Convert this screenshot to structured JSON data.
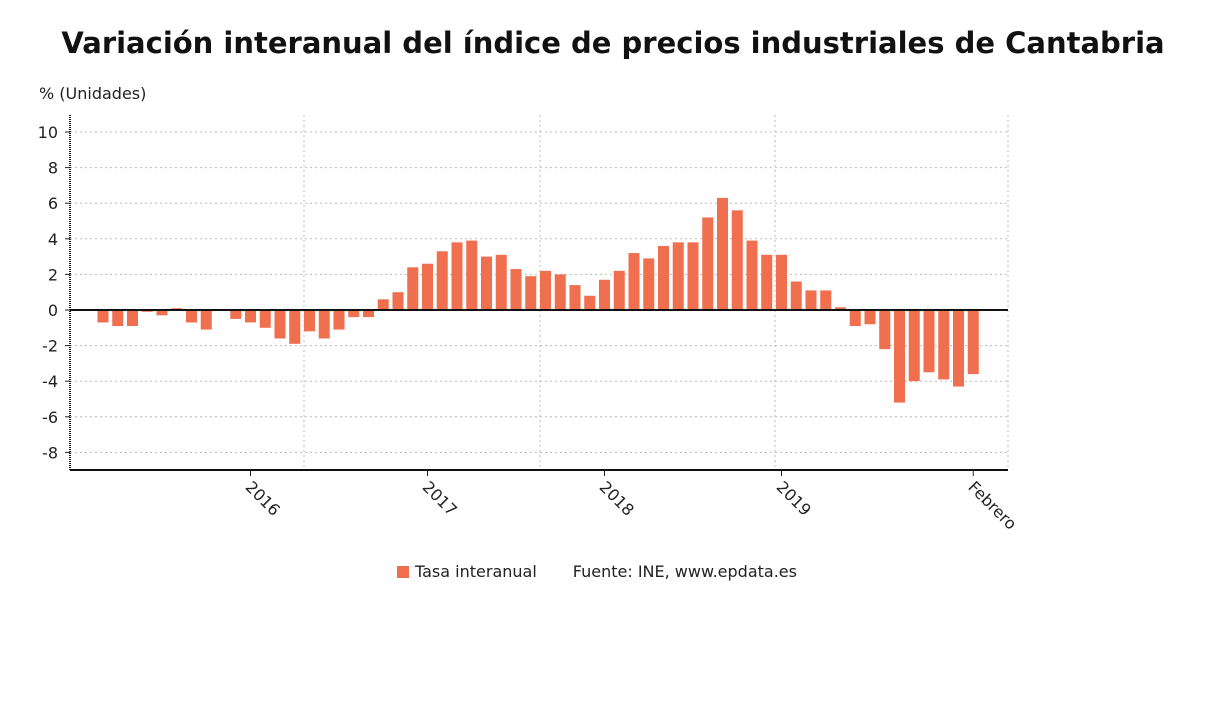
{
  "title": "Variación interanual del índice de precios industriales de Cantabria",
  "chart_data": {
    "type": "bar",
    "ylabel": "% (Unidades)",
    "ylim": [
      -9,
      11
    ],
    "yticks": [
      10,
      8,
      6,
      4,
      2,
      0,
      -2,
      -4,
      -6,
      -8
    ],
    "xtick_labels": [
      {
        "label": "2016",
        "index": 10
      },
      {
        "label": "2017",
        "index": 22
      },
      {
        "label": "2018",
        "index": 34
      },
      {
        "label": "2019",
        "index": 46
      },
      {
        "label": "Febrero",
        "index": 59
      }
    ],
    "grid": true,
    "legend": "bottom",
    "color": "#ef6f4f",
    "categories": [
      "2015-03",
      "2015-04",
      "2015-05",
      "2015-06",
      "2015-07",
      "2015-08",
      "2015-09",
      "2015-10",
      "2015-11",
      "2015-12",
      "2016-01",
      "2016-02",
      "2016-03",
      "2016-04",
      "2016-05",
      "2016-06",
      "2016-07",
      "2016-08",
      "2016-09",
      "2016-10",
      "2016-11",
      "2016-12",
      "2017-01",
      "2017-02",
      "2017-03",
      "2017-04",
      "2017-05",
      "2017-06",
      "2017-07",
      "2017-08",
      "2017-09",
      "2017-10",
      "2017-11",
      "2017-12",
      "2018-01",
      "2018-02",
      "2018-03",
      "2018-04",
      "2018-05",
      "2018-06",
      "2018-07",
      "2018-08",
      "2018-09",
      "2018-10",
      "2018-11",
      "2018-12",
      "2019-01",
      "2019-02",
      "2019-03",
      "2019-04",
      "2019-05",
      "2019-06",
      "2019-07",
      "2019-08",
      "2019-09",
      "2019-10",
      "2019-11",
      "2019-12",
      "2020-01",
      "2020-02"
    ],
    "series": [
      {
        "name": "Tasa interanual",
        "values": [
          -0.7,
          -0.9,
          -0.9,
          -0.1,
          -0.3,
          0.1,
          -0.7,
          -1.1,
          -0.05,
          -0.5,
          -0.7,
          -1.0,
          -1.6,
          -1.9,
          -1.2,
          -1.6,
          -1.1,
          -0.4,
          -0.4,
          0.6,
          1.0,
          2.4,
          2.6,
          3.3,
          3.8,
          3.9,
          3.0,
          3.1,
          2.3,
          1.9,
          2.2,
          2.0,
          1.4,
          0.8,
          1.7,
          2.2,
          3.2,
          2.9,
          3.6,
          3.8,
          3.8,
          5.2,
          6.3,
          5.6,
          3.9,
          3.1,
          3.1,
          1.6,
          1.1,
          1.1,
          0.15,
          -0.9,
          -0.8,
          -2.2,
          -5.2,
          -4.0,
          -3.5,
          -3.9,
          -4.3,
          -3.6
        ]
      }
    ]
  },
  "legend": {
    "series_label": "Tasa interanual",
    "source": "Fuente: INE, www.epdata.es"
  }
}
